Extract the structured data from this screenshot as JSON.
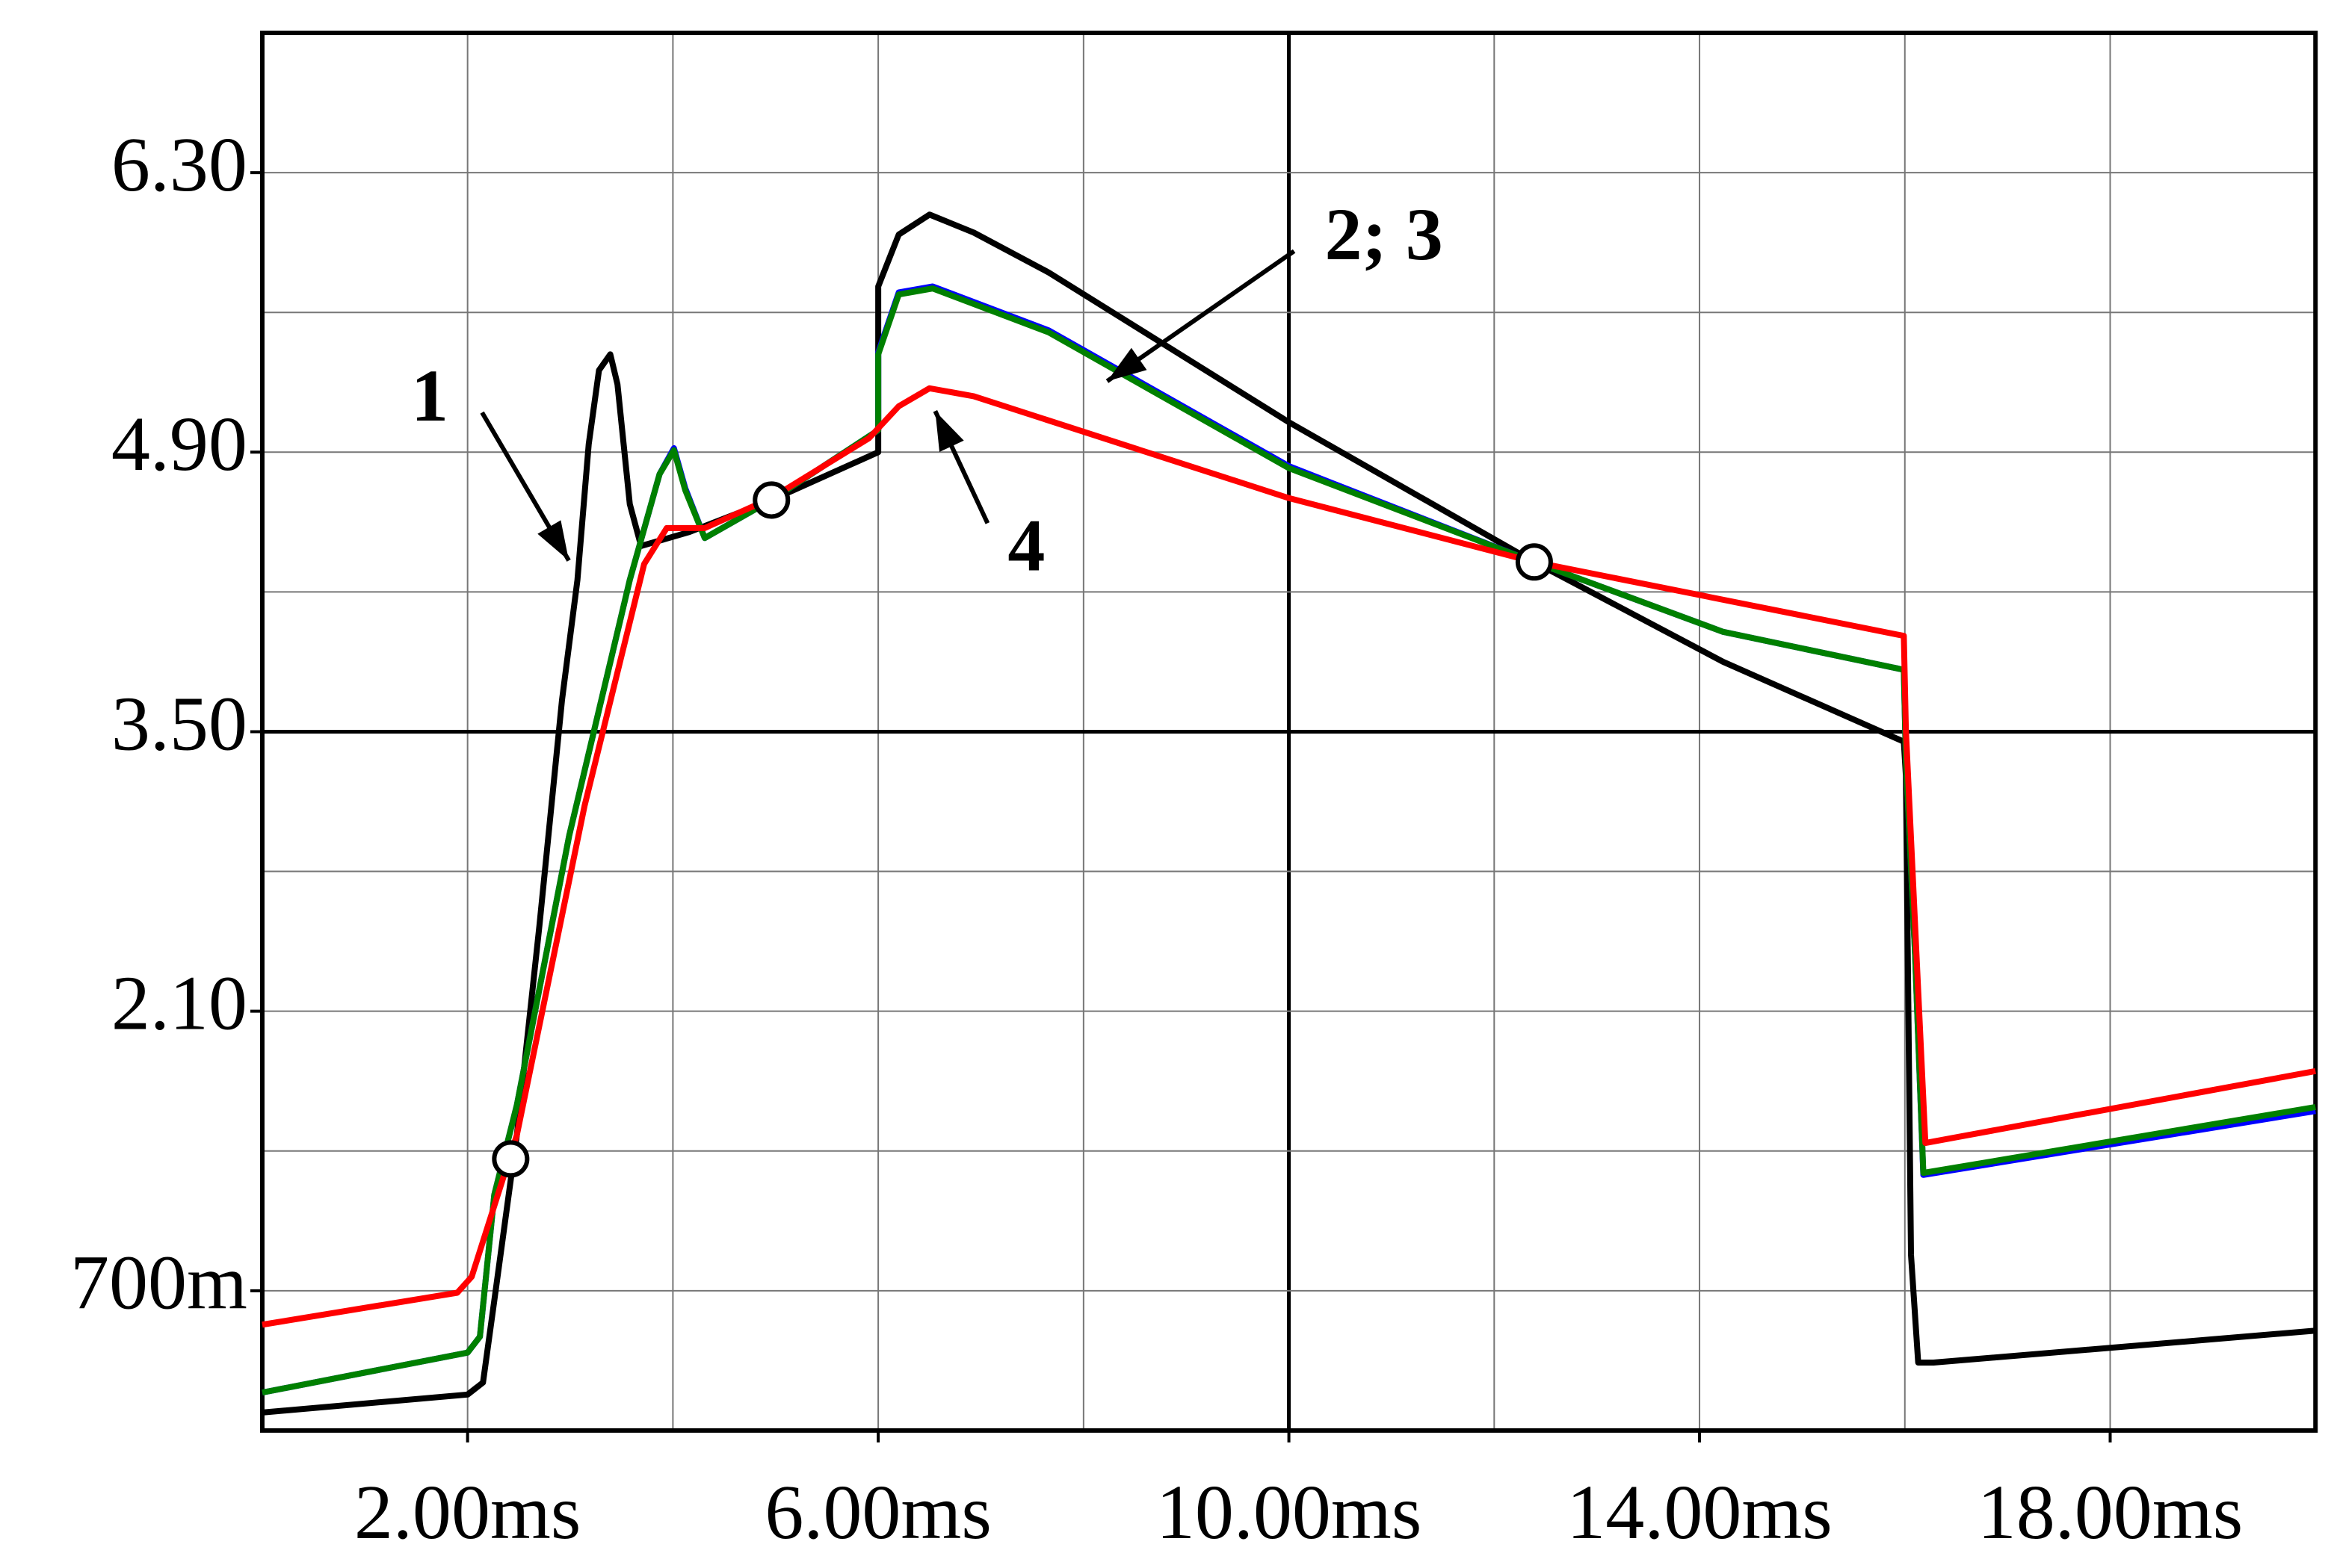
{
  "chart_data": {
    "type": "line",
    "xlim": [
      0,
      20
    ],
    "ylim": [
      0,
      7.0
    ],
    "xticks": [
      {
        "value": 2,
        "label": "2.00ms"
      },
      {
        "value": 6,
        "label": "6.00ms"
      },
      {
        "value": 10,
        "label": "10.00ms"
      },
      {
        "value": 14,
        "label": "14.00ms"
      },
      {
        "value": 18,
        "label": "18.00ms"
      }
    ],
    "yticks": [
      {
        "value": 0.7,
        "label": "700m"
      },
      {
        "value": 2.1,
        "label": "2.10"
      },
      {
        "value": 3.5,
        "label": "3.50"
      },
      {
        "value": 4.9,
        "label": "4.90"
      },
      {
        "value": 6.3,
        "label": "6.30"
      }
    ],
    "x_grid": [
      2,
      4,
      6,
      8,
      10,
      12,
      14,
      16,
      18
    ],
    "y_grid": [
      0.7,
      1.4,
      2.1,
      2.8,
      3.5,
      4.2,
      4.9,
      5.6,
      6.3
    ],
    "grid": true,
    "series": [
      {
        "color": "#000000",
        "x": [
          0,
          2.0,
          2.15,
          2.26,
          2.48,
          2.7,
          2.92,
          3.07,
          3.18,
          3.28,
          3.39,
          3.46,
          3.58,
          3.69,
          4.16,
          4.96,
          6.0,
          6.0,
          6.2,
          6.5,
          6.93,
          7.66,
          10.0,
          12.39,
          14.23,
          15.99,
          16.01,
          16.06,
          16.13,
          16.28,
          20.0
        ],
        "values": [
          0.09,
          0.18,
          0.24,
          0.65,
          1.48,
          2.53,
          3.66,
          4.26,
          4.94,
          5.31,
          5.39,
          5.24,
          4.64,
          4.43,
          4.5,
          4.66,
          4.9,
          5.73,
          5.99,
          6.09,
          6.0,
          5.8,
          5.05,
          4.35,
          3.85,
          3.45,
          3.28,
          0.88,
          0.34,
          0.34,
          0.5
        ]
      },
      {
        "color": "#0000ff",
        "x": [
          0,
          2.0,
          2.12,
          2.26,
          2.48,
          2.99,
          3.58,
          3.87,
          4.01,
          4.12,
          4.31,
          4.96,
          6.0,
          6.0,
          6.2,
          6.53,
          7.66,
          10.0,
          12.39,
          14.23,
          15.99,
          16.01,
          16.1,
          16.18,
          20.0
        ],
        "values": [
          0.19,
          0.39,
          0.47,
          1.18,
          1.63,
          2.98,
          4.26,
          4.79,
          4.92,
          4.72,
          4.47,
          4.66,
          5.01,
          5.4,
          5.7,
          5.73,
          5.51,
          4.83,
          4.35,
          4.0,
          3.81,
          3.36,
          2.38,
          1.28,
          1.6
        ]
      },
      {
        "color": "#008000",
        "x": [
          0,
          2.0,
          2.12,
          2.26,
          2.48,
          2.99,
          3.58,
          3.87,
          4.01,
          4.12,
          4.31,
          4.96,
          6.0,
          6.0,
          6.2,
          6.53,
          7.66,
          10.0,
          12.39,
          14.23,
          15.99,
          16.01,
          16.1,
          16.18,
          20.0
        ],
        "values": [
          0.19,
          0.39,
          0.47,
          1.18,
          1.63,
          2.98,
          4.26,
          4.79,
          4.91,
          4.71,
          4.47,
          4.66,
          5.01,
          5.39,
          5.69,
          5.72,
          5.5,
          4.82,
          4.35,
          4.0,
          3.81,
          3.36,
          2.38,
          1.29,
          1.62
        ]
      },
      {
        "color": "#ff0000",
        "x": [
          0,
          1.9,
          2.04,
          2.48,
          3.14,
          3.72,
          3.94,
          4.31,
          4.96,
          5.91,
          6.2,
          6.5,
          6.93,
          10.0,
          12.39,
          15.99,
          16.01,
          16.2,
          20.0
        ],
        "values": [
          0.53,
          0.69,
          0.77,
          1.48,
          3.13,
          4.34,
          4.52,
          4.52,
          4.67,
          4.97,
          5.13,
          5.22,
          5.18,
          4.67,
          4.35,
          3.98,
          3.51,
          1.44,
          1.8
        ]
      }
    ],
    "markers": {
      "x": [
        2.42,
        4.96,
        12.39
      ],
      "y": [
        1.36,
        4.66,
        4.35
      ]
    },
    "annotations": [
      {
        "text": "1"
      },
      {
        "text": "2; 3"
      },
      {
        "text": "4"
      }
    ]
  }
}
